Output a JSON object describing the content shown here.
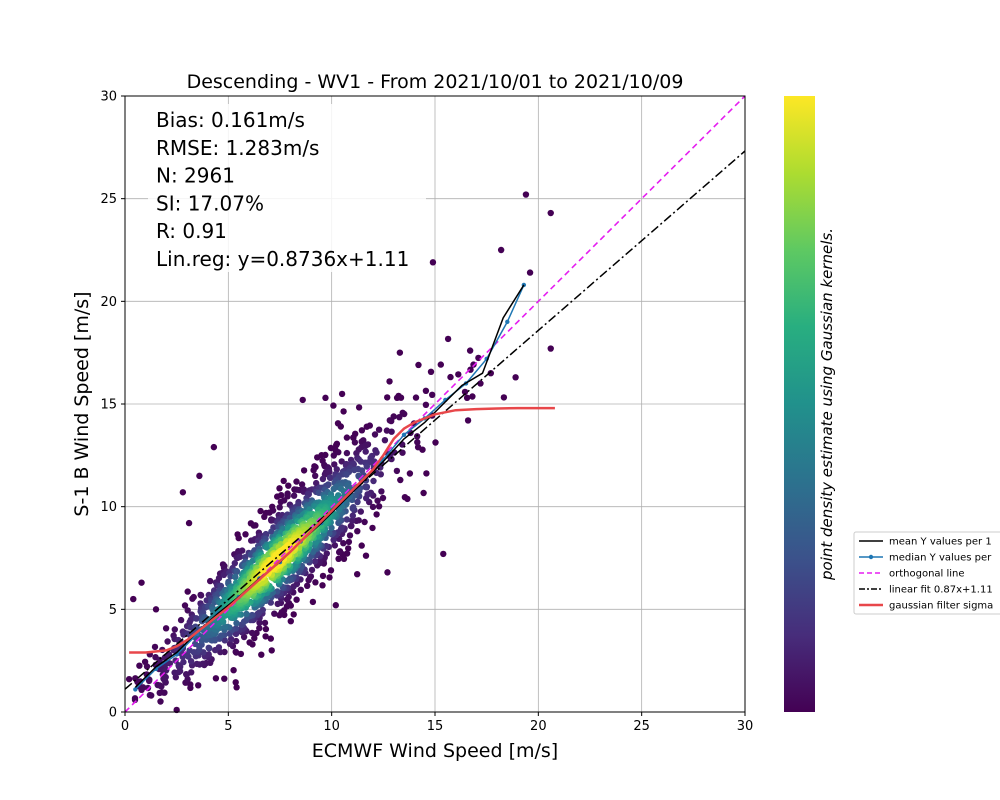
{
  "chart_data": {
    "type": "scatter",
    "title": "Descending - WV1 - From 2021/10/01 to 2021/10/09",
    "xlabel": "ECMWF Wind Speed [m/s]",
    "ylabel": "S-1 B Wind Speed [m/s]",
    "xlim": [
      0,
      30
    ],
    "ylim": [
      0,
      30
    ],
    "xticks": [
      "0",
      "5",
      "10",
      "15",
      "20",
      "25",
      "30"
    ],
    "yticks": [
      "0",
      "5",
      "10",
      "15",
      "20",
      "25",
      "30"
    ],
    "grid": true,
    "stats": [
      "Bias: 0.161m/s",
      "RMSE: 1.283m/s",
      "N: 2961",
      "SI: 17.07%",
      "R: 0.91",
      "Lin.reg: y=0.8736x+1.11"
    ],
    "n_points": 2961,
    "colorbar": {
      "label": "point density estimate using Gaussian kernels.",
      "colormap": "viridis"
    },
    "legend": {
      "placement": "right",
      "entries": [
        {
          "label": "mean Y values per 1",
          "color": "#000000",
          "style": "solid"
        },
        {
          "label": "median Y values per",
          "color": "#1f77b4",
          "style": "dot-line"
        },
        {
          "label": "orthogonal line",
          "color": "#e51ef0",
          "style": "dashed"
        },
        {
          "label": "linear fit 0.87x+1.11",
          "color": "#000000",
          "style": "dashdot"
        },
        {
          "label": "gaussian filter sigma",
          "color": "#e8474a",
          "style": "solid-thick"
        }
      ]
    },
    "series": [
      {
        "name": "mean Y values per 1",
        "x": [
          0.5,
          1.5,
          2.5,
          3.5,
          4.5,
          5.5,
          6.5,
          7.5,
          8.5,
          9.5,
          10.5,
          11.5,
          12.5,
          13.5,
          14.5,
          15.5,
          16.3,
          17.3,
          18.3,
          19.3
        ],
        "y": [
          1.2,
          2.2,
          2.9,
          3.9,
          4.8,
          5.6,
          6.5,
          7.3,
          8.3,
          9.2,
          10.2,
          11.2,
          12.2,
          13.3,
          14.1,
          15.1,
          15.9,
          16.5,
          19.2,
          20.8
        ]
      },
      {
        "name": "median Y values per",
        "x": [
          0.5,
          1.5,
          2.5,
          3.5,
          4.5,
          5.5,
          6.5,
          7.5,
          8.5,
          9.5,
          10.5,
          11.5,
          12.5,
          13.5,
          14.5,
          15.5,
          16.5,
          17.5,
          18.5,
          19.3
        ],
        "y": [
          1.1,
          2.1,
          2.8,
          3.8,
          4.8,
          5.6,
          6.5,
          7.3,
          8.3,
          9.2,
          10.2,
          11.3,
          12.3,
          13.5,
          14.3,
          15.2,
          16.0,
          17.2,
          19.0,
          20.8
        ]
      },
      {
        "name": "orthogonal line",
        "x": [
          0,
          30
        ],
        "y": [
          0,
          30
        ]
      },
      {
        "name": "linear fit 0.87x+1.11",
        "x": [
          0,
          30
        ],
        "y": [
          1.11,
          27.32
        ]
      },
      {
        "name": "gaussian filter sigma",
        "x": [
          0.2,
          1.0,
          2.0,
          2.5,
          3.0,
          4.0,
          5.0,
          6.0,
          7.0,
          8.0,
          9.0,
          10.0,
          11.0,
          12.0,
          12.5,
          13.0,
          13.5,
          14.0,
          15.0,
          16.0,
          17.0,
          18.0,
          19.0,
          20.0,
          20.8
        ],
        "y": [
          2.9,
          2.9,
          3.0,
          3.2,
          3.5,
          4.3,
          5.1,
          6.0,
          6.9,
          7.8,
          8.8,
          9.8,
          10.8,
          11.8,
          12.5,
          13.3,
          13.8,
          14.1,
          14.5,
          14.7,
          14.75,
          14.78,
          14.8,
          14.8,
          14.8
        ]
      }
    ],
    "outliers": [
      [
        19.4,
        25.2
      ],
      [
        20.6,
        24.3
      ],
      [
        14.9,
        21.9
      ],
      [
        18.2,
        22.5
      ],
      [
        20.6,
        17.7
      ],
      [
        8.6,
        15.2
      ],
      [
        9.7,
        15.3
      ],
      [
        4.3,
        12.9
      ],
      [
        10.2,
        5.2
      ],
      [
        12.7,
        6.8
      ],
      [
        15.4,
        7.7
      ],
      [
        0.8,
        6.3
      ],
      [
        0.4,
        5.5
      ],
      [
        0.2,
        1.6
      ],
      [
        2.5,
        0.1
      ],
      [
        5.4,
        1.2
      ],
      [
        3.1,
        9.2
      ],
      [
        19.6,
        21.4
      ],
      [
        17.7,
        16.5
      ],
      [
        18.9,
        16.3
      ],
      [
        16.7,
        17.6
      ],
      [
        13.3,
        17.5
      ],
      [
        12.8,
        16.1
      ],
      [
        14.2,
        16.9
      ],
      [
        2.8,
        10.7
      ],
      [
        1.5,
        5.0
      ],
      [
        7.1,
        3.0
      ],
      [
        16.6,
        14.2
      ],
      [
        17.2,
        16.0
      ],
      [
        3.6,
        11.5
      ]
    ]
  }
}
